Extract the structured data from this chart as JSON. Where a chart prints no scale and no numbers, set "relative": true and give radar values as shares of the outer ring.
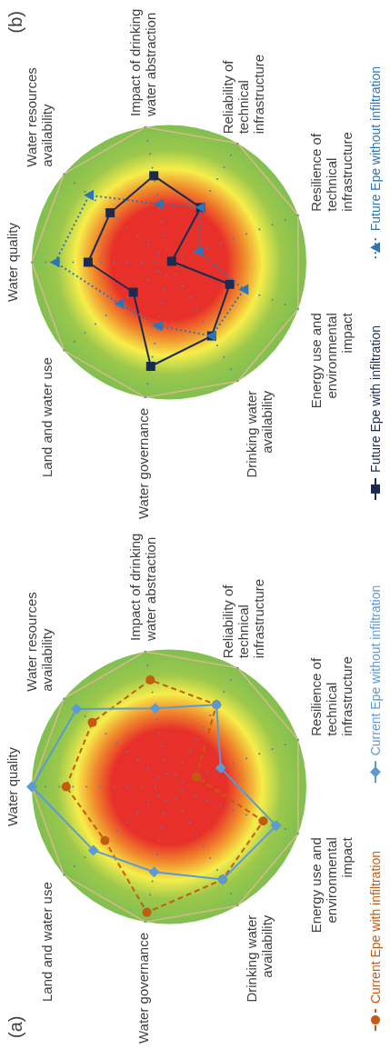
{
  "chart_data": [
    {
      "type": "radar",
      "title": "(a)",
      "relative": true,
      "grid": true,
      "legend": "right",
      "categories": [
        "Water quality",
        "Water resources availability",
        "Impact of drinking water abstraction",
        "Reliability of technical infrastructure",
        "Resilience of technical infrastructure",
        "Energy use and environmental impact",
        "Drinking water availability",
        "Water governance",
        "Land and water use"
      ],
      "series": [
        {
          "name": "Current Epe with infiltration",
          "color": "#c55a11",
          "marker": "circle",
          "line_style": "dashed",
          "values": [
            0.75,
            0.73,
            0.79,
            0.69,
            0.21,
            0.73,
            0.78,
            0.93,
            0.61
          ]
        },
        {
          "name": "Current Epe without infiltration",
          "color": "#5b9bd5",
          "marker": "diamond",
          "line_style": "solid",
          "values": [
            1,
            0.88,
            0.58,
            0.69,
            0.4,
            0.83,
            0.78,
            0.63,
            0.72
          ]
        }
      ]
    },
    {
      "type": "radar",
      "title": "(b)",
      "relative": true,
      "grid": true,
      "legend": "right",
      "categories": [
        "Water quality",
        "Water resources availability",
        "Impact of drinking water abstraction",
        "Reliability of technical infrastructure",
        "Resilience of technical infrastructure",
        "Energy use and environmental impact",
        "Drinking water availability",
        "Water governance",
        "Land and water use"
      ],
      "series": [
        {
          "name": "Future Epe with infiltration",
          "color": "#1a2b4f",
          "marker": "square",
          "line_style": "solid",
          "values": [
            0.59,
            0.56,
            0.64,
            0.46,
            0.02,
            0.47,
            0.62,
            0.77,
            0.34
          ]
        },
        {
          "name": "Future Epe without infiltration",
          "color": "#2e75b6",
          "marker": "triangle",
          "line_style": "dotted",
          "values": [
            0.83,
            0.76,
            0.43,
            0.46,
            0.23,
            0.58,
            0.62,
            0.47,
            0.47
          ]
        }
      ]
    }
  ]
}
